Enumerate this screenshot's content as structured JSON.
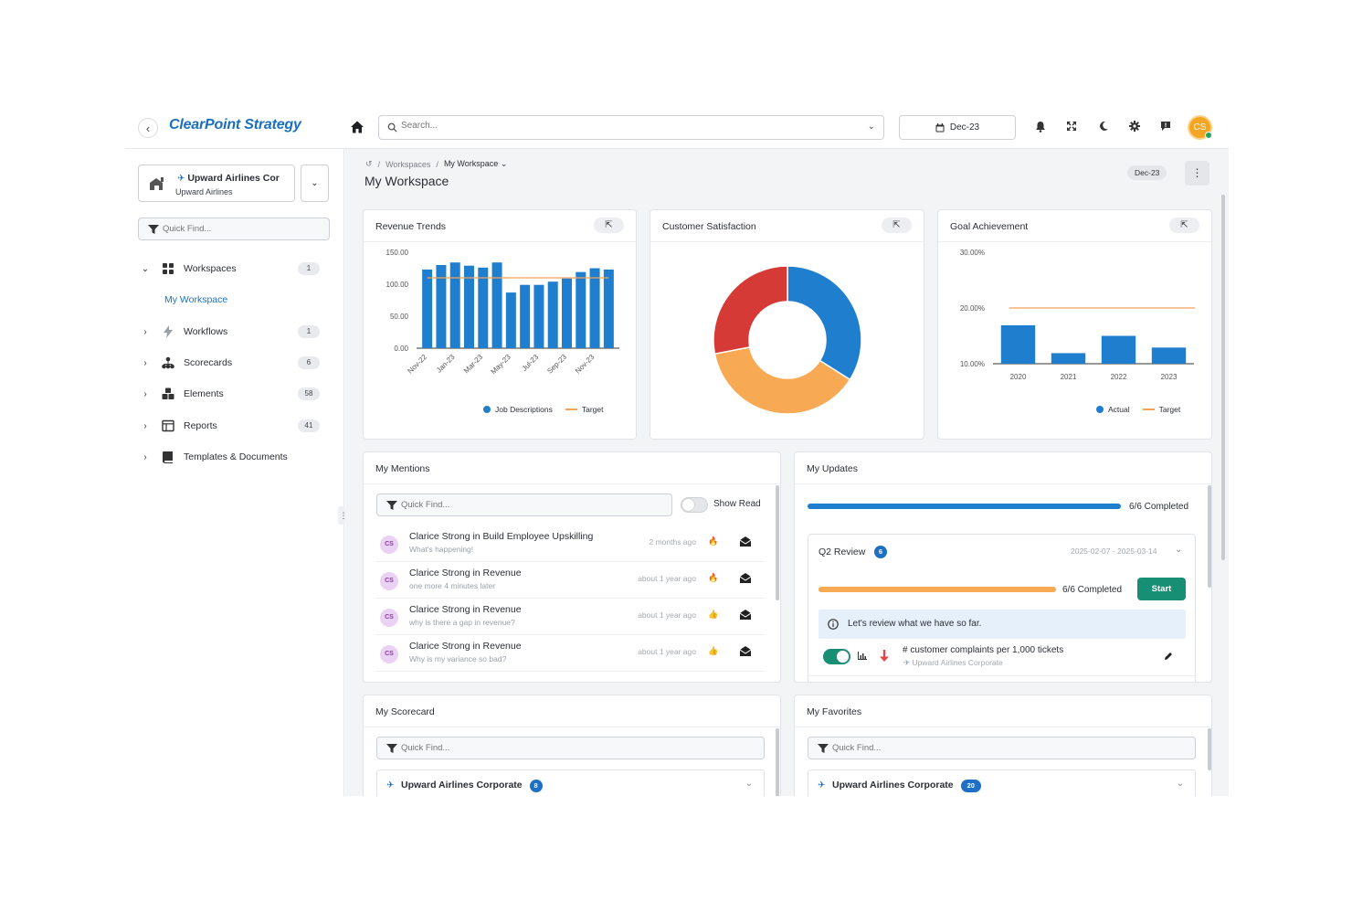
{
  "header": {
    "logo_text": "ClearPoint Strategy",
    "search_placeholder": "Search...",
    "period": "Dec-23",
    "avatar_initials": "CS"
  },
  "sidebar": {
    "org_name": "Upward Airlines Cor",
    "org_sub": "Upward Airlines",
    "quick_find_placeholder": "Quick Find...",
    "items": [
      {
        "label": "Workspaces",
        "count": "1",
        "icon": "grid-icon",
        "expanded": true
      },
      {
        "label": "Workflows",
        "count": "1",
        "icon": "bolt-icon"
      },
      {
        "label": "Scorecards",
        "count": "6",
        "icon": "hierarchy-icon"
      },
      {
        "label": "Elements",
        "count": "58",
        "icon": "cubes-icon"
      },
      {
        "label": "Reports",
        "count": "41",
        "icon": "report-icon"
      },
      {
        "label": "Templates & Documents",
        "count": "",
        "icon": "book-icon"
      }
    ],
    "sub_item": "My Workspace"
  },
  "main": {
    "breadcrumb": [
      "Workspaces",
      "My Workspace"
    ],
    "title": "My Workspace",
    "period_badge": "Dec-23"
  },
  "cards": {
    "revenue_trends": {
      "title": "Revenue Trends"
    },
    "customer_satisfaction": {
      "title": "Customer Satisfaction"
    },
    "goal_achievement": {
      "title": "Goal Achievement"
    },
    "my_mentions": {
      "title": "My Mentions",
      "quick_find_placeholder": "Quick Find...",
      "show_read_label": "Show Read",
      "items": [
        {
          "initials": "CS",
          "title": "Clarice Strong in Build Employee Upskilling",
          "sub": "What's happening!",
          "time": "2 months ago",
          "reaction": "fire-icon"
        },
        {
          "initials": "CS",
          "title": "Clarice Strong in Revenue",
          "sub": "one more 4 minutes later",
          "time": "about 1 year ago",
          "reaction": "fire-icon"
        },
        {
          "initials": "CS",
          "title": "Clarice Strong in Revenue",
          "sub": "why is there a gap in revenue?",
          "time": "about 1 year ago",
          "reaction": "thumbs-up-icon"
        },
        {
          "initials": "CS",
          "title": "Clarice Strong in Revenue",
          "sub": "Why is my variance so bad?",
          "time": "about 1 year ago",
          "reaction": "thumbs-up-icon"
        }
      ]
    },
    "my_updates": {
      "title": "My Updates",
      "overall_progress": 1.0,
      "overall_label": "6/6 Completed",
      "review": {
        "title": "Q2 Review",
        "count": "6",
        "dates": "2025-02-07 - 2025-03-14",
        "progress": 1.0,
        "progress_label": "6/6 Completed",
        "start_label": "Start",
        "info": "Let's review what we have so far.",
        "metric": "# customer complaints per 1,000 tickets",
        "metric_org": "Upward Airlines Corporate"
      }
    },
    "my_scorecard": {
      "title": "My Scorecard",
      "quick_find_placeholder": "Quick Find...",
      "org": "Upward Airlines Corporate",
      "count": "8"
    },
    "my_favorites": {
      "title": "My Favorites",
      "quick_find_placeholder": "Quick Find...",
      "org": "Upward Airlines Corporate",
      "count": "20"
    }
  },
  "colors": {
    "accent_blue": "#1f7fce",
    "target_orange": "#f5a25a",
    "donut_red": "#d63a36",
    "donut_orange": "#f8a954",
    "start_green": "#178f74"
  },
  "chart_data": [
    {
      "type": "bar",
      "title": "Revenue Trends",
      "categories": [
        "Nov-22",
        "Dec-22",
        "Jan-23",
        "Feb-23",
        "Mar-23",
        "Apr-23",
        "May-23",
        "Jun-23",
        "Jul-23",
        "Aug-23",
        "Sep-23",
        "Oct-23",
        "Nov-23",
        "Dec-23"
      ],
      "tick_labels": [
        "Nov-22",
        "Jan-23",
        "Mar-23",
        "May-23",
        "Jul-23",
        "Sep-23",
        "Nov-23"
      ],
      "series": [
        {
          "name": "Job Descriptions",
          "type": "bar",
          "values": [
            123,
            130,
            134,
            129,
            126,
            134,
            87,
            99,
            99,
            104,
            109,
            119,
            125,
            123
          ]
        },
        {
          "name": "Target",
          "type": "line",
          "values": [
            110,
            110,
            110,
            110,
            110,
            110,
            110,
            110,
            110,
            110,
            110,
            110,
            110,
            110
          ]
        }
      ],
      "yticks": [
        "150.00",
        "100.00",
        "50.00",
        "0.00"
      ],
      "ylim": [
        0,
        150
      ],
      "legend": "bottom"
    },
    {
      "type": "pie",
      "title": "Customer Satisfaction",
      "donut": true,
      "values": [
        34,
        38,
        28
      ],
      "colors": [
        "#1f7fce",
        "#f8a954",
        "#d63a36"
      ]
    },
    {
      "type": "bar",
      "title": "Goal Achievement",
      "categories": [
        "2020",
        "2021",
        "2022",
        "2023"
      ],
      "series": [
        {
          "name": "Actual",
          "type": "bar",
          "values": [
            16.9,
            11.9,
            15.0,
            12.9
          ]
        },
        {
          "name": "Target",
          "type": "line",
          "values": [
            20.0,
            20.0,
            20.0,
            20.0
          ]
        }
      ],
      "yticks": [
        "30.00%",
        "20.00%",
        "10.00%"
      ],
      "ylim": [
        10,
        30
      ],
      "legend": "bottom"
    }
  ]
}
